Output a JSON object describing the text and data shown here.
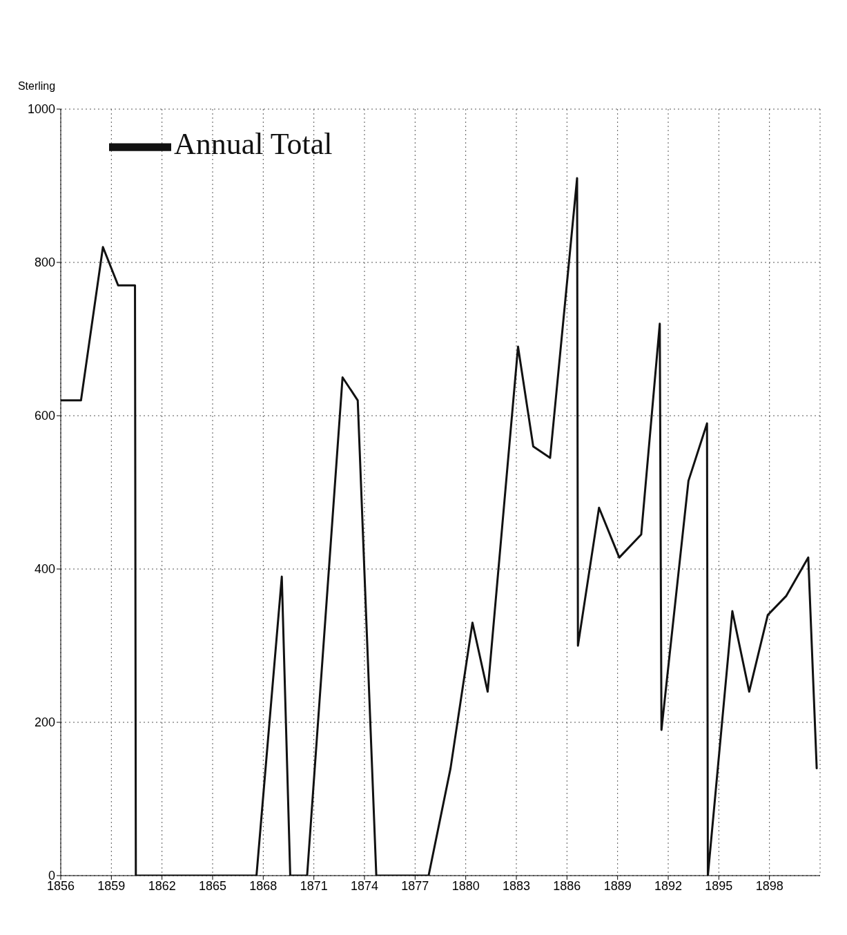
{
  "chart_data": {
    "type": "line",
    "ylabel": "Sterling",
    "x": [
      1856,
      1857.2,
      1858.5,
      1859.4,
      1860.4,
      1860.45,
      1867.6,
      1869.1,
      1869.6,
      1870.6,
      1872.7,
      1873.6,
      1874.7,
      1877.8,
      1879.1,
      1880.4,
      1881.3,
      1883.1,
      1884,
      1885,
      1886.6,
      1886.65,
      1887.9,
      1889.1,
      1890.4,
      1891.5,
      1891.6,
      1893.2,
      1894.3,
      1894.35,
      1895.8,
      1896.8,
      1897.9,
      1899,
      1900.3,
      1900.8
    ],
    "series": [
      {
        "name": "Annual Total",
        "color": "#111111",
        "values": [
          620,
          620,
          820,
          770,
          770,
          0,
          0,
          390,
          0,
          0,
          650,
          620,
          0,
          0,
          140,
          330,
          240,
          690,
          560,
          545,
          910,
          300,
          480,
          415,
          445,
          720,
          190,
          515,
          590,
          0,
          345,
          240,
          340,
          365,
          415,
          140
        ]
      }
    ],
    "xlim": [
      1856,
      1901
    ],
    "xticks": [
      1856,
      1859,
      1862,
      1865,
      1868,
      1871,
      1874,
      1877,
      1880,
      1883,
      1886,
      1889,
      1892,
      1895,
      1898
    ],
    "ylim": [
      0,
      1000
    ],
    "yticks": [
      0,
      200,
      400,
      600,
      800,
      1000
    ],
    "grid": true,
    "legend": "top left",
    "marker": "none",
    "line_style": "solid"
  }
}
